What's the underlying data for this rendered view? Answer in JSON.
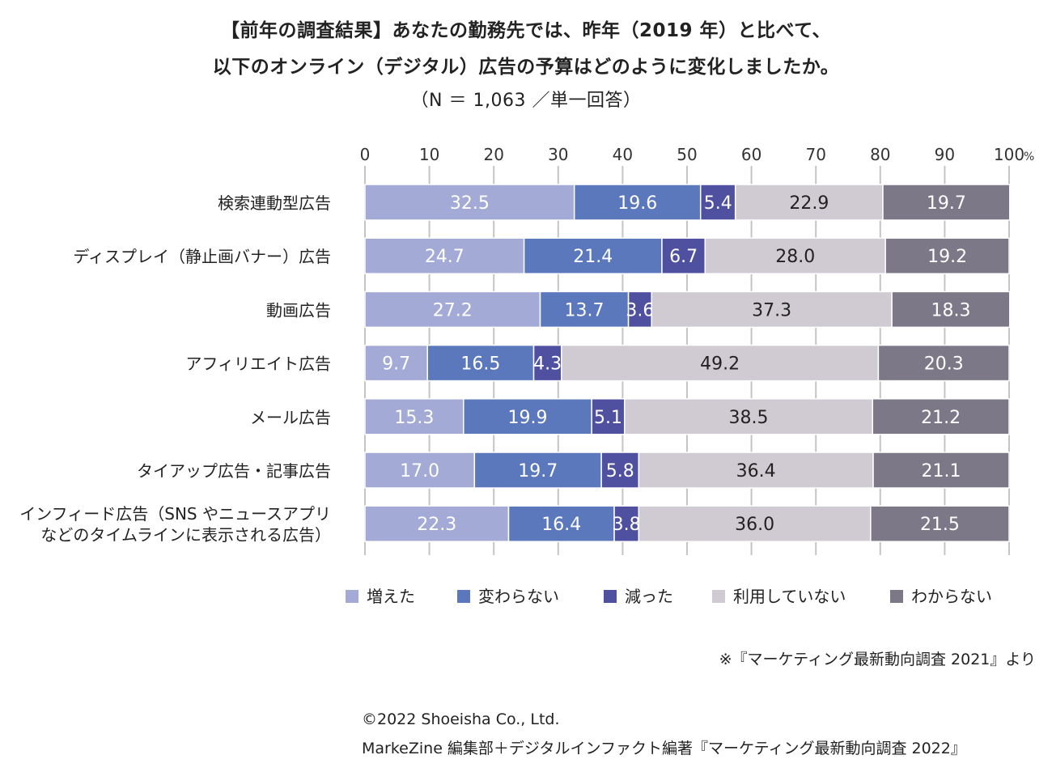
{
  "title": {
    "line1": "【前年の調査結果】あなたの勤務先では、昨年（2019 年）と比べて、",
    "line2": "以下のオンライン（デジタル）広告の予算はどのように変化しましたか。",
    "line3": "（N ＝ 1,063 ／単一回答）"
  },
  "note": "※『マーケティング最新動向調査 2021』より",
  "copyright": "©2022 Shoeisha Co., Ltd.",
  "credit": "MarkeZine 編集部＋デジタルインファクト編著『マーケティング最新動向調査 2022』",
  "chart_data": {
    "type": "bar",
    "orientation": "horizontal",
    "stacked": true,
    "xlim": [
      0,
      100
    ],
    "x_ticks": [
      "0",
      "10",
      "20",
      "30",
      "40",
      "50",
      "60",
      "70",
      "80",
      "90",
      "100"
    ],
    "x_unit": "%",
    "grid": true,
    "legend_position": "bottom",
    "categories": [
      [
        "検索連動型広告"
      ],
      [
        "ディスプレイ（静止画バナー）広告"
      ],
      [
        "動画広告"
      ],
      [
        "アフィリエイト広告"
      ],
      [
        "メール広告"
      ],
      [
        "タイアップ広告・記事広告"
      ],
      [
        "インフィード広告（SNS やニュースアプリ",
        "などのタイムラインに表示される広告）"
      ]
    ],
    "series": [
      {
        "name": "増えた",
        "color": "#a3aad6",
        "label_color": "#ffffff",
        "values": [
          32.5,
          24.7,
          27.2,
          9.7,
          15.3,
          17.0,
          22.3
        ]
      },
      {
        "name": "変わらない",
        "color": "#5b78bd",
        "label_color": "#ffffff",
        "values": [
          19.6,
          21.4,
          13.7,
          16.5,
          19.9,
          19.7,
          16.4
        ]
      },
      {
        "name": "減った",
        "color": "#5050a0",
        "label_color": "#ffffff",
        "values": [
          5.4,
          6.7,
          3.6,
          4.3,
          5.1,
          5.8,
          3.8
        ]
      },
      {
        "name": "利用していない",
        "color": "#d0cbd2",
        "label_color": "#222222",
        "values": [
          22.9,
          28.0,
          37.3,
          49.2,
          38.5,
          36.4,
          36.0
        ]
      },
      {
        "name": "わからない",
        "color": "#7c7888",
        "label_color": "#ffffff",
        "values": [
          19.7,
          19.2,
          18.3,
          20.3,
          21.2,
          21.1,
          21.5
        ]
      }
    ]
  }
}
